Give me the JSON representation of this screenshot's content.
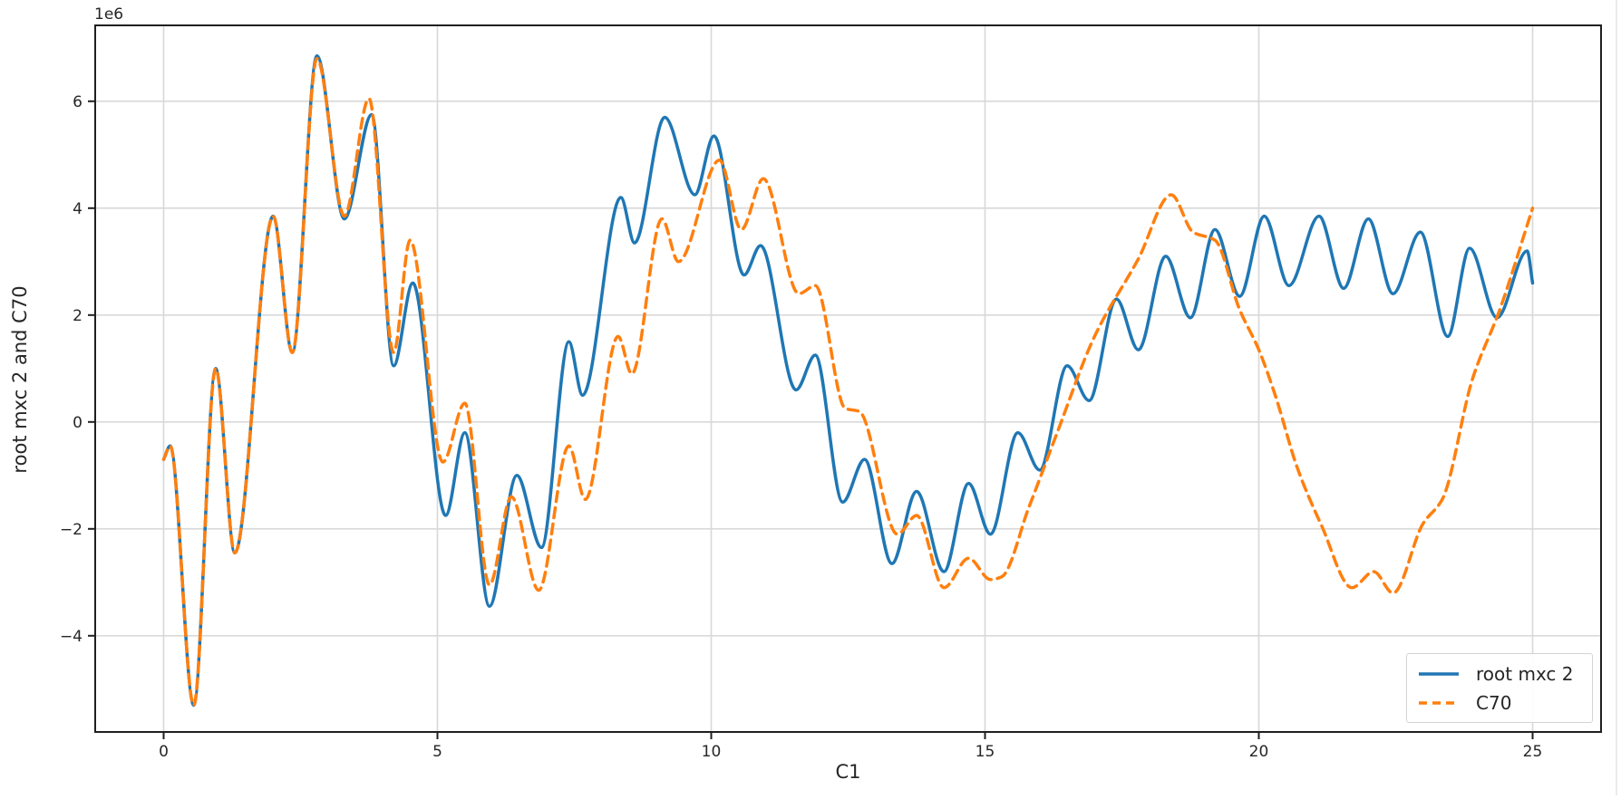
{
  "figure": {
    "offset_text": "1e6",
    "xlabel": "C1",
    "ylabel": "root mxc 2 and C70"
  },
  "chart_data": {
    "type": "line",
    "title": "",
    "xlabel": "C1",
    "ylabel": "root mxc 2 and C70",
    "y_offset_multiplier": "1e6",
    "xlim": [
      -1.25,
      26.25
    ],
    "ylim": [
      -5.8,
      7.42
    ],
    "x_ticks": [
      0,
      5,
      10,
      15,
      20,
      25
    ],
    "y_ticks": [
      -4,
      -2,
      0,
      2,
      4,
      6
    ],
    "y_tick_labels": [
      "−4",
      "−2",
      "0",
      "2",
      "4",
      "6"
    ],
    "grid": true,
    "grid_color": "#d9d9d9",
    "spine_color": "#1f1f1f",
    "legend": {
      "position": "lower right",
      "entries": [
        "root mxc 2",
        "C70"
      ]
    },
    "series": [
      {
        "name": "root mxc 2",
        "color": "#1f77b4",
        "style": "solid",
        "line_width": 3.5,
        "points": [
          [
            0,
            -0.7
          ],
          [
            0.12,
            -0.45
          ],
          [
            0.55,
            -5.3
          ],
          [
            0.95,
            1.0
          ],
          [
            1.3,
            -2.45
          ],
          [
            2.0,
            3.85
          ],
          [
            2.35,
            1.3
          ],
          [
            2.8,
            6.85
          ],
          [
            3.3,
            3.8
          ],
          [
            3.8,
            5.75
          ],
          [
            4.2,
            1.05
          ],
          [
            4.55,
            2.6
          ],
          [
            5.15,
            -1.75
          ],
          [
            5.5,
            -0.2
          ],
          [
            5.95,
            -3.45
          ],
          [
            6.45,
            -1.0
          ],
          [
            6.9,
            -2.35
          ],
          [
            7.4,
            1.5
          ],
          [
            7.65,
            0.5
          ],
          [
            8.35,
            4.2
          ],
          [
            8.6,
            3.35
          ],
          [
            9.15,
            5.7
          ],
          [
            9.7,
            4.25
          ],
          [
            10.05,
            5.35
          ],
          [
            10.6,
            2.75
          ],
          [
            10.9,
            3.3
          ],
          [
            11.55,
            0.6
          ],
          [
            11.9,
            1.25
          ],
          [
            12.4,
            -1.5
          ],
          [
            12.8,
            -0.7
          ],
          [
            13.3,
            -2.65
          ],
          [
            13.75,
            -1.3
          ],
          [
            14.25,
            -2.8
          ],
          [
            14.7,
            -1.15
          ],
          [
            15.1,
            -2.1
          ],
          [
            15.6,
            -0.2
          ],
          [
            16.0,
            -0.9
          ],
          [
            16.5,
            1.05
          ],
          [
            16.9,
            0.4
          ],
          [
            17.4,
            2.3
          ],
          [
            17.8,
            1.35
          ],
          [
            18.3,
            3.1
          ],
          [
            18.75,
            1.95
          ],
          [
            19.2,
            3.6
          ],
          [
            19.65,
            2.35
          ],
          [
            20.1,
            3.85
          ],
          [
            20.55,
            2.55
          ],
          [
            21.1,
            3.85
          ],
          [
            21.55,
            2.5
          ],
          [
            22.0,
            3.8
          ],
          [
            22.45,
            2.4
          ],
          [
            22.95,
            3.55
          ],
          [
            23.45,
            1.6
          ],
          [
            23.85,
            3.25
          ],
          [
            24.35,
            1.95
          ],
          [
            24.9,
            3.2
          ],
          [
            25.0,
            2.6
          ]
        ]
      },
      {
        "name": "C70",
        "color": "#ff7f0e",
        "style": "dashed",
        "line_width": 3.5,
        "dash_pattern": [
          11,
          7
        ],
        "points": [
          [
            0,
            -0.7
          ],
          [
            0.12,
            -0.45
          ],
          [
            0.55,
            -5.3
          ],
          [
            0.95,
            1.0
          ],
          [
            1.3,
            -2.45
          ],
          [
            2.0,
            3.85
          ],
          [
            2.35,
            1.3
          ],
          [
            2.8,
            6.8
          ],
          [
            3.3,
            3.85
          ],
          [
            3.75,
            6.05
          ],
          [
            4.2,
            1.3
          ],
          [
            4.5,
            3.4
          ],
          [
            5.1,
            -0.75
          ],
          [
            5.5,
            0.35
          ],
          [
            5.95,
            -3.05
          ],
          [
            6.35,
            -1.4
          ],
          [
            6.85,
            -3.15
          ],
          [
            7.4,
            -0.45
          ],
          [
            7.7,
            -1.45
          ],
          [
            8.3,
            1.6
          ],
          [
            8.55,
            0.9
          ],
          [
            9.1,
            3.8
          ],
          [
            9.4,
            3.0
          ],
          [
            10.15,
            4.9
          ],
          [
            10.55,
            3.6
          ],
          [
            10.95,
            4.55
          ],
          [
            11.6,
            2.4
          ],
          [
            11.9,
            2.55
          ],
          [
            12.45,
            0.25
          ],
          [
            12.7,
            0.2
          ],
          [
            13.4,
            -2.1
          ],
          [
            13.75,
            -1.75
          ],
          [
            14.25,
            -3.1
          ],
          [
            14.7,
            -2.55
          ],
          [
            15.1,
            -2.95
          ],
          [
            15.3,
            -2.9
          ],
          [
            15.8,
            -1.6
          ],
          [
            16.3,
            -0.25
          ],
          [
            17.0,
            1.6
          ],
          [
            17.8,
            3.05
          ],
          [
            18.4,
            4.25
          ],
          [
            18.8,
            3.55
          ],
          [
            19.2,
            3.4
          ],
          [
            19.65,
            2.1
          ],
          [
            20.0,
            1.35
          ],
          [
            20.3,
            0.5
          ],
          [
            20.7,
            -0.85
          ],
          [
            21.15,
            -1.95
          ],
          [
            21.7,
            -3.1
          ],
          [
            22.1,
            -2.8
          ],
          [
            22.45,
            -3.2
          ],
          [
            23.0,
            -1.9
          ],
          [
            23.35,
            -1.45
          ],
          [
            23.9,
            0.8
          ],
          [
            24.4,
            2.1
          ],
          [
            25.0,
            4.0
          ]
        ]
      }
    ]
  }
}
